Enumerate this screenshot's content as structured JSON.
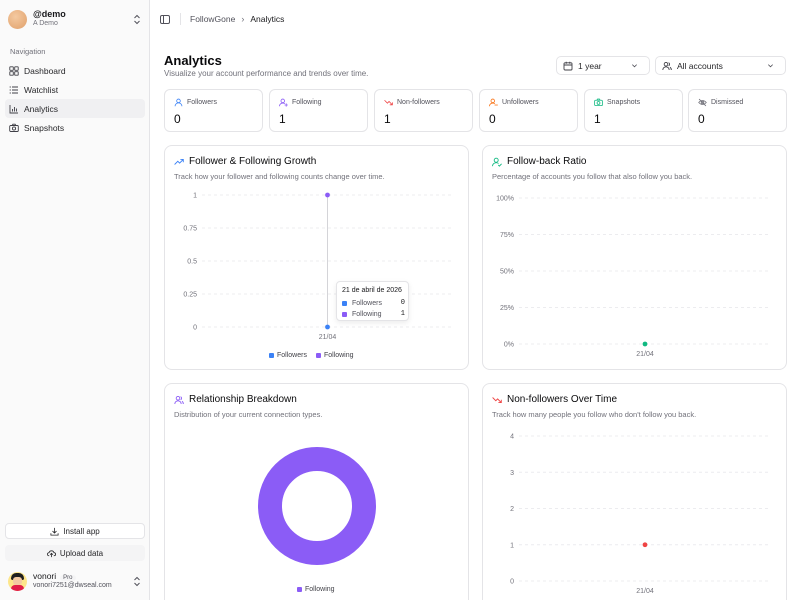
{
  "account": {
    "handle": "@demo",
    "name": "A Demo"
  },
  "nav": {
    "label": "Navigation",
    "items": [
      {
        "label": "Dashboard",
        "icon": "dashboard-icon"
      },
      {
        "label": "Watchlist",
        "icon": "list-icon"
      },
      {
        "label": "Analytics",
        "icon": "chart-icon",
        "active": true
      },
      {
        "label": "Snapshots",
        "icon": "camera-icon"
      }
    ]
  },
  "sidebar_footer": {
    "install_label": "Install app",
    "upload_label": "Upload data",
    "user": {
      "name": "vonori",
      "plan": "Pro",
      "email": "vonori7251@dwseal.com"
    }
  },
  "breadcrumb": [
    "FollowGone",
    "Analytics"
  ],
  "page": {
    "title": "Analytics",
    "subtitle": "Visualize your account performance and trends over time.",
    "range_select": "1 year",
    "account_select": "All accounts"
  },
  "stats": [
    {
      "label": "Followers",
      "value": "0",
      "color": "#3b82f6",
      "icon": "user-icon"
    },
    {
      "label": "Following",
      "value": "1",
      "color": "#8b5cf6",
      "icon": "user-plus-icon"
    },
    {
      "label": "Non-followers",
      "value": "1",
      "color": "#ef4444",
      "icon": "trend-down-icon"
    },
    {
      "label": "Unfollowers",
      "value": "0",
      "color": "#f97316",
      "icon": "user-minus-icon"
    },
    {
      "label": "Snapshots",
      "value": "1",
      "color": "#10b981",
      "icon": "camera-icon"
    },
    {
      "label": "Dismissed",
      "value": "0",
      "color": "#71717a",
      "icon": "eye-off-icon"
    }
  ],
  "panels": {
    "growth": {
      "title": "Follower & Following Growth",
      "desc": "Track how your follower and following counts change over time.",
      "tooltip": {
        "title": "21 de abril de 2026",
        "rows": [
          {
            "name": "Followers",
            "value": "0"
          },
          {
            "name": "Following",
            "value": "1"
          }
        ]
      }
    },
    "followback": {
      "title": "Follow-back Ratio",
      "desc": "Percentage of accounts you follow that also follow you back."
    },
    "breakdown": {
      "title": "Relationship Breakdown",
      "desc": "Distribution of your current connection types."
    },
    "nonfollowers": {
      "title": "Non-followers Over Time",
      "desc": "Track how many people you follow who don't follow you back."
    }
  },
  "chart_data": [
    {
      "type": "line",
      "title": "Follower & Following Growth",
      "x": [
        "21/04"
      ],
      "yticks": [
        "0",
        "0.25",
        "0.5",
        "0.75",
        "1"
      ],
      "ylim": [
        0,
        1
      ],
      "grid": true,
      "legend": "bottom",
      "series": [
        {
          "name": "Followers",
          "values": [
            0
          ],
          "color": "#3b82f6"
        },
        {
          "name": "Following",
          "values": [
            1
          ],
          "color": "#8b5cf6"
        }
      ]
    },
    {
      "type": "line",
      "title": "Follow-back Ratio",
      "x": [
        "21/04"
      ],
      "yticks": [
        "0%",
        "25%",
        "50%",
        "75%",
        "100%"
      ],
      "ylim": [
        0,
        100
      ],
      "grid": true,
      "series": [
        {
          "values": [
            0
          ],
          "color": "#10b981"
        }
      ]
    },
    {
      "type": "pie",
      "title": "Relationship Breakdown",
      "categories": [
        "Following"
      ],
      "values": [
        1
      ],
      "colors": [
        "#8b5cf6"
      ],
      "legend": "bottom"
    },
    {
      "type": "line",
      "title": "Non-followers Over Time",
      "x": [
        "21/04"
      ],
      "yticks": [
        "0",
        "1",
        "2",
        "3",
        "4"
      ],
      "ylim": [
        0,
        4
      ],
      "grid": true,
      "series": [
        {
          "values": [
            1
          ],
          "color": "#ef4444"
        }
      ]
    }
  ]
}
